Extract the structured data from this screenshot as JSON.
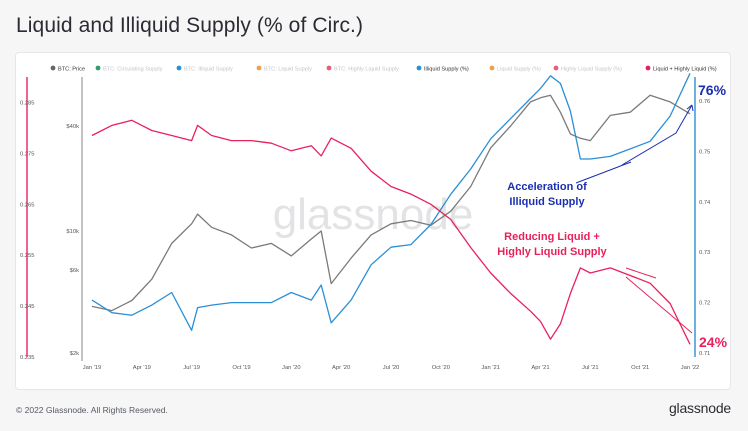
{
  "page": {
    "title": "Liquid and Illiquid Supply (% of Circ.)",
    "copyright": "© 2022 Glassnode. All Rights Reserved.",
    "brand": "glassnode",
    "watermark": "glassnode"
  },
  "chart_data": {
    "type": "line",
    "legend": [
      {
        "label": "BTC: Price",
        "color": "#666666",
        "active": true
      },
      {
        "label": "BTC: Circulating Supply",
        "color": "#2e9e6b",
        "active": false
      },
      {
        "label": "BTC: Illiquid Supply",
        "color": "#2b8fd6",
        "active": false
      },
      {
        "label": "BTC: Liquid Supply",
        "color": "#f0a04b",
        "active": false
      },
      {
        "label": "BTC: Highly Liquid Supply",
        "color": "#e85d7c",
        "active": false
      },
      {
        "label": "Illiquid Supply (%)",
        "color": "#2b8fd6",
        "active": true
      },
      {
        "label": "Liquid Supply (%)",
        "color": "#f0a04b",
        "active": false
      },
      {
        "label": "Highly Liquid Supply (%)",
        "color": "#e85d7c",
        "active": false
      },
      {
        "label": "Liquid + Highly Liquid (%)",
        "color": "#e8215c",
        "active": true
      }
    ],
    "x_ticks": [
      "Jan '19",
      "Apr '19",
      "Jul '19",
      "Oct '19",
      "Jan '20",
      "Apr '20",
      "Jul '20",
      "Oct '20",
      "Jan '21",
      "Apr '21",
      "Jul '21",
      "Oct '21",
      "Jan '22"
    ],
    "left_axis_ticks": [
      "0.285",
      "0.275",
      "0.265",
      "0.255",
      "0.245",
      "0.235"
    ],
    "left_axis_range": [
      0.235,
      0.29
    ],
    "price_axis_ticks": [
      "$40k",
      "$10k",
      "$6k",
      "$2k"
    ],
    "right_axis_ticks": [
      "0.76",
      "0.75",
      "0.74",
      "0.73",
      "0.72",
      "0.71"
    ],
    "right_axis_range": [
      0.71,
      0.76
    ],
    "x_range": [
      2018.95,
      2022.03
    ],
    "colors": {
      "price": "#7a7a7a",
      "illiquid": "#2b8fd6",
      "liquid_combined": "#e8215c",
      "annotation_blue": "#1a2fb0"
    },
    "series": [
      {
        "name": "Liquid + Highly Liquid (%)",
        "axis": "left",
        "x": [
          2019.0,
          2019.1,
          2019.2,
          2019.3,
          2019.4,
          2019.5,
          2019.53,
          2019.6,
          2019.7,
          2019.8,
          2019.9,
          2020.0,
          2020.1,
          2020.15,
          2020.2,
          2020.3,
          2020.4,
          2020.5,
          2020.6,
          2020.7,
          2020.8,
          2020.9,
          2021.0,
          2021.1,
          2021.2,
          2021.25,
          2021.3,
          2021.35,
          2021.4,
          2021.45,
          2021.5,
          2021.6,
          2021.7,
          2021.8,
          2021.9,
          2022.0
        ],
        "values": [
          0.2785,
          0.2805,
          0.2815,
          0.2795,
          0.2785,
          0.2775,
          0.2805,
          0.2785,
          0.2775,
          0.2775,
          0.277,
          0.2755,
          0.2765,
          0.2745,
          0.278,
          0.276,
          0.2715,
          0.2685,
          0.267,
          0.265,
          0.262,
          0.2565,
          0.2515,
          0.2475,
          0.244,
          0.242,
          0.2385,
          0.2415,
          0.2475,
          0.2525,
          0.2515,
          0.2525,
          0.251,
          0.2495,
          0.2455,
          0.2375
        ]
      },
      {
        "name": "Illiquid Supply (%)",
        "axis": "right",
        "x": [
          2019.0,
          2019.1,
          2019.2,
          2019.3,
          2019.4,
          2019.5,
          2019.53,
          2019.6,
          2019.7,
          2019.8,
          2019.9,
          2020.0,
          2020.1,
          2020.15,
          2020.2,
          2020.3,
          2020.4,
          2020.5,
          2020.6,
          2020.7,
          2020.8,
          2020.9,
          2021.0,
          2021.1,
          2021.2,
          2021.25,
          2021.3,
          2021.35,
          2021.4,
          2021.45,
          2021.5,
          2021.6,
          2021.7,
          2021.8,
          2021.9,
          2022.0
        ],
        "values": [
          0.7205,
          0.718,
          0.7175,
          0.7195,
          0.722,
          0.7145,
          0.719,
          0.7195,
          0.72,
          0.72,
          0.72,
          0.722,
          0.7205,
          0.7235,
          0.716,
          0.7205,
          0.7275,
          0.731,
          0.7315,
          0.7355,
          0.7415,
          0.7465,
          0.7525,
          0.7565,
          0.7605,
          0.7625,
          0.765,
          0.7635,
          0.758,
          0.7485,
          0.7485,
          0.749,
          0.7505,
          0.752,
          0.757,
          0.7655
        ]
      },
      {
        "name": "BTC: Price",
        "axis": "price",
        "x": [
          2019.0,
          2019.1,
          2019.2,
          2019.3,
          2019.4,
          2019.5,
          2019.53,
          2019.6,
          2019.7,
          2019.8,
          2019.9,
          2020.0,
          2020.1,
          2020.15,
          2020.2,
          2020.3,
          2020.4,
          2020.5,
          2020.6,
          2020.7,
          2020.8,
          2020.9,
          2021.0,
          2021.1,
          2021.2,
          2021.25,
          2021.3,
          2021.35,
          2021.4,
          2021.45,
          2021.5,
          2021.6,
          2021.7,
          2021.8,
          2021.9,
          2022.0
        ],
        "values": [
          3700,
          3500,
          4000,
          5300,
          8500,
          11000,
          12500,
          10500,
          9500,
          8000,
          8500,
          7200,
          9000,
          10000,
          5000,
          7000,
          9500,
          11000,
          11500,
          10800,
          13000,
          18000,
          30000,
          40000,
          55000,
          58000,
          60000,
          48000,
          36000,
          34000,
          33000,
          46000,
          48000,
          60000,
          55000,
          47000
        ]
      }
    ],
    "annotations": [
      {
        "text": "76%",
        "color": "#1a2fb0"
      },
      {
        "text": "24%",
        "color": "#e8215c"
      },
      {
        "line1": "Acceleration of",
        "line2": "Illiquid Supply",
        "color": "#1a2fb0"
      },
      {
        "line1": "Reducing Liquid +",
        "line2": "Highly Liquid Supply",
        "color": "#e8215c"
      }
    ]
  }
}
